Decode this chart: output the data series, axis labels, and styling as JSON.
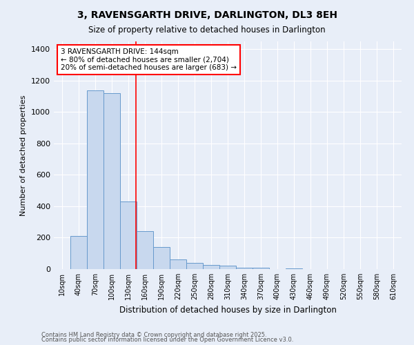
{
  "title": "3, RAVENSGARTH DRIVE, DARLINGTON, DL3 8EH",
  "subtitle": "Size of property relative to detached houses in Darlington",
  "xlabel": "Distribution of detached houses by size in Darlington",
  "ylabel": "Number of detached properties",
  "bar_color": "#c8d8ee",
  "bar_edge_color": "#6699cc",
  "background_color": "#e8eef8",
  "categories": [
    "10sqm",
    "40sqm",
    "70sqm",
    "100sqm",
    "130sqm",
    "160sqm",
    "190sqm",
    "220sqm",
    "250sqm",
    "280sqm",
    "310sqm",
    "340sqm",
    "370sqm",
    "400sqm",
    "430sqm",
    "460sqm",
    "490sqm",
    "520sqm",
    "550sqm",
    "580sqm",
    "610sqm"
  ],
  "values": [
    0,
    210,
    1140,
    1120,
    430,
    240,
    140,
    60,
    40,
    25,
    20,
    10,
    10,
    0,
    5,
    2,
    0,
    0,
    0,
    0,
    0
  ],
  "red_line_x": 4.47,
  "annotation_text": "3 RAVENSGARTH DRIVE: 144sqm\n← 80% of detached houses are smaller (2,704)\n20% of semi-detached houses are larger (683) →",
  "ylim": [
    0,
    1450
  ],
  "yticks": [
    0,
    200,
    400,
    600,
    800,
    1000,
    1200,
    1400
  ],
  "footnote1": "Contains HM Land Registry data © Crown copyright and database right 2025.",
  "footnote2": "Contains public sector information licensed under the Open Government Licence v3.0.",
  "grid_color": "#ffffff",
  "figsize": [
    6.0,
    5.0
  ],
  "dpi": 100
}
